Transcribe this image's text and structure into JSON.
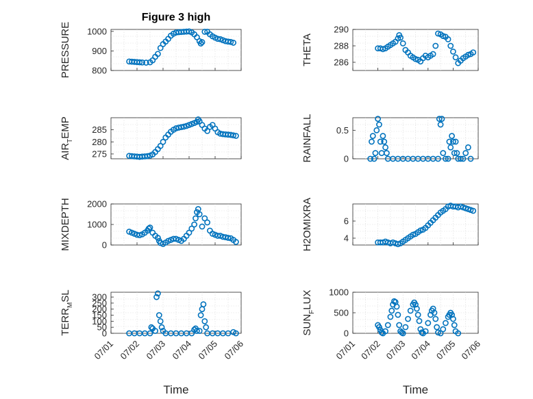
{
  "title": "Figure 3 high",
  "colors": {
    "marker": "#0072bd",
    "axis": "#262626",
    "grid": "#d9d9d9"
  },
  "chart_data": [
    {
      "type": "scatter",
      "id": "pressure",
      "ylabel": "PRESSURE",
      "ylim": [
        800,
        1010
      ],
      "yticks": [
        800,
        900,
        1000
      ],
      "grid": true,
      "points": [
        [
          1.7,
          846
        ],
        [
          1.8,
          845
        ],
        [
          1.9,
          844
        ],
        [
          2.0,
          843
        ],
        [
          2.1,
          842
        ],
        [
          2.2,
          841
        ],
        [
          2.35,
          840
        ],
        [
          2.5,
          842
        ],
        [
          2.6,
          852
        ],
        [
          2.7,
          870
        ],
        [
          2.8,
          885
        ],
        [
          2.9,
          915
        ],
        [
          3.0,
          935
        ],
        [
          3.1,
          948
        ],
        [
          3.2,
          962
        ],
        [
          3.3,
          978
        ],
        [
          3.4,
          988
        ],
        [
          3.5,
          994
        ],
        [
          3.6,
          996
        ],
        [
          3.7,
          997
        ],
        [
          3.8,
          998
        ],
        [
          3.9,
          999
        ],
        [
          4.0,
          1000
        ],
        [
          4.1,
          995
        ],
        [
          4.2,
          985
        ],
        [
          4.3,
          970
        ],
        [
          4.4,
          950
        ],
        [
          4.45,
          938
        ],
        [
          4.5,
          945
        ],
        [
          4.6,
          998
        ],
        [
          4.7,
          998
        ],
        [
          4.8,
          985
        ],
        [
          4.9,
          975
        ],
        [
          5.0,
          968
        ],
        [
          5.1,
          962
        ],
        [
          5.2,
          960
        ],
        [
          5.3,
          955
        ],
        [
          5.4,
          950
        ],
        [
          5.5,
          948
        ],
        [
          5.6,
          946
        ],
        [
          5.7,
          942
        ]
      ]
    },
    {
      "type": "scatter",
      "id": "theta",
      "ylabel": "THETA",
      "ylim": [
        285,
        290
      ],
      "yticks": [
        286,
        288,
        290
      ],
      "grid": true,
      "points": [
        [
          2.0,
          287.7
        ],
        [
          2.1,
          287.7
        ],
        [
          2.2,
          287.6
        ],
        [
          2.3,
          287.7
        ],
        [
          2.4,
          287.9
        ],
        [
          2.5,
          288.1
        ],
        [
          2.6,
          288.3
        ],
        [
          2.7,
          288.5
        ],
        [
          2.8,
          288.9
        ],
        [
          2.85,
          289.3
        ],
        [
          2.9,
          289.0
        ],
        [
          3.0,
          288.3
        ],
        [
          3.1,
          287.5
        ],
        [
          3.2,
          287.2
        ],
        [
          3.3,
          286.8
        ],
        [
          3.4,
          286.6
        ],
        [
          3.5,
          286.4
        ],
        [
          3.6,
          286.3
        ],
        [
          3.7,
          286.1
        ],
        [
          3.8,
          286.5
        ],
        [
          3.9,
          286.8
        ],
        [
          4.0,
          286.6
        ],
        [
          4.1,
          286.8
        ],
        [
          4.2,
          287.0
        ],
        [
          4.3,
          288.0
        ],
        [
          4.4,
          289.5
        ],
        [
          4.5,
          289.4
        ],
        [
          4.6,
          289.2
        ],
        [
          4.7,
          289.1
        ],
        [
          4.8,
          288.8
        ],
        [
          4.9,
          288.0
        ],
        [
          5.0,
          287.3
        ],
        [
          5.1,
          286.6
        ],
        [
          5.2,
          285.9
        ],
        [
          5.3,
          286.2
        ],
        [
          5.4,
          286.5
        ],
        [
          5.5,
          286.7
        ],
        [
          5.6,
          286.9
        ],
        [
          5.7,
          287.0
        ],
        [
          5.8,
          287.2
        ]
      ]
    },
    {
      "type": "scatter",
      "id": "air_temp",
      "ylabel": "AIR",
      "ylabel_sub": "T",
      "ylabel_rest": "EMP",
      "ylim": [
        273,
        290
      ],
      "yticks": [
        275,
        280,
        285
      ],
      "grid": true,
      "points": [
        [
          1.7,
          274.2
        ],
        [
          1.8,
          274.1
        ],
        [
          1.9,
          274.0
        ],
        [
          2.0,
          273.9
        ],
        [
          2.1,
          273.8
        ],
        [
          2.2,
          273.9
        ],
        [
          2.3,
          274.0
        ],
        [
          2.4,
          274.1
        ],
        [
          2.5,
          274.3
        ],
        [
          2.6,
          274.8
        ],
        [
          2.7,
          275.8
        ],
        [
          2.8,
          277.0
        ],
        [
          2.9,
          278.3
        ],
        [
          3.0,
          280.0
        ],
        [
          3.1,
          281.8
        ],
        [
          3.2,
          283.0
        ],
        [
          3.3,
          284.2
        ],
        [
          3.4,
          285.0
        ],
        [
          3.5,
          285.6
        ],
        [
          3.6,
          285.9
        ],
        [
          3.7,
          286.1
        ],
        [
          3.8,
          286.3
        ],
        [
          3.9,
          286.6
        ],
        [
          4.0,
          287.0
        ],
        [
          4.1,
          287.4
        ],
        [
          4.2,
          287.8
        ],
        [
          4.3,
          288.3
        ],
        [
          4.35,
          289.3
        ],
        [
          4.4,
          288.5
        ],
        [
          4.5,
          287.0
        ],
        [
          4.6,
          285.5
        ],
        [
          4.7,
          284.5
        ],
        [
          4.8,
          286.2
        ],
        [
          4.9,
          287.0
        ],
        [
          5.0,
          285.5
        ],
        [
          5.1,
          284.0
        ],
        [
          5.2,
          283.4
        ],
        [
          5.3,
          283.2
        ],
        [
          5.4,
          283.1
        ],
        [
          5.5,
          283.0
        ],
        [
          5.6,
          282.9
        ],
        [
          5.7,
          282.7
        ],
        [
          5.8,
          282.5
        ]
      ]
    },
    {
      "type": "scatter",
      "id": "rainfall",
      "ylabel": "RAINFALL",
      "ylim": [
        0,
        0.72
      ],
      "yticks": [
        0,
        0.5
      ],
      "grid": true,
      "points": [
        [
          1.7,
          0
        ],
        [
          1.75,
          0.3
        ],
        [
          1.8,
          0.4
        ],
        [
          1.85,
          0
        ],
        [
          1.9,
          0.1
        ],
        [
          1.95,
          0.5
        ],
        [
          2.0,
          0.7
        ],
        [
          2.05,
          0.6
        ],
        [
          2.1,
          0.3
        ],
        [
          2.15,
          0.1
        ],
        [
          2.2,
          0.4
        ],
        [
          2.25,
          0.3
        ],
        [
          2.3,
          0.2
        ],
        [
          2.35,
          0.1
        ],
        [
          2.4,
          0
        ],
        [
          2.6,
          0
        ],
        [
          2.8,
          0
        ],
        [
          3.0,
          0
        ],
        [
          3.2,
          0
        ],
        [
          3.4,
          0
        ],
        [
          3.6,
          0
        ],
        [
          3.8,
          0
        ],
        [
          4.0,
          0
        ],
        [
          4.2,
          0
        ],
        [
          4.4,
          0
        ],
        [
          4.45,
          0.7
        ],
        [
          4.5,
          0.6
        ],
        [
          4.55,
          0.7
        ],
        [
          4.6,
          0.1
        ],
        [
          4.7,
          0
        ],
        [
          4.8,
          0
        ],
        [
          4.85,
          0.3
        ],
        [
          4.9,
          0.2
        ],
        [
          4.95,
          0.4
        ],
        [
          5.0,
          0.3
        ],
        [
          5.05,
          0.1
        ],
        [
          5.1,
          0.3
        ],
        [
          5.15,
          0.1
        ],
        [
          5.2,
          0
        ],
        [
          5.3,
          0
        ],
        [
          5.4,
          0
        ],
        [
          5.5,
          0.1
        ],
        [
          5.6,
          0.2
        ],
        [
          5.7,
          0
        ]
      ]
    },
    {
      "type": "scatter",
      "id": "mixdepth",
      "ylabel": "MIXDEPTH",
      "ylim": [
        0,
        2000
      ],
      "yticks": [
        0,
        1000,
        2000
      ],
      "grid": true,
      "points": [
        [
          1.7,
          650
        ],
        [
          1.8,
          600
        ],
        [
          1.9,
          550
        ],
        [
          2.0,
          500
        ],
        [
          2.1,
          480
        ],
        [
          2.2,
          520
        ],
        [
          2.3,
          600
        ],
        [
          2.4,
          700
        ],
        [
          2.45,
          800
        ],
        [
          2.5,
          850
        ],
        [
          2.6,
          600
        ],
        [
          2.7,
          450
        ],
        [
          2.8,
          350
        ],
        [
          2.85,
          200
        ],
        [
          2.9,
          100
        ],
        [
          3.0,
          50
        ],
        [
          3.1,
          120
        ],
        [
          3.2,
          200
        ],
        [
          3.3,
          250
        ],
        [
          3.4,
          300
        ],
        [
          3.5,
          300
        ],
        [
          3.6,
          250
        ],
        [
          3.7,
          200
        ],
        [
          3.8,
          300
        ],
        [
          3.9,
          450
        ],
        [
          4.0,
          600
        ],
        [
          4.1,
          800
        ],
        [
          4.2,
          1000
        ],
        [
          4.25,
          1300
        ],
        [
          4.3,
          1600
        ],
        [
          4.35,
          1750
        ],
        [
          4.4,
          1500
        ],
        [
          4.5,
          900
        ],
        [
          4.6,
          1300
        ],
        [
          4.7,
          1100
        ],
        [
          4.8,
          700
        ],
        [
          4.9,
          550
        ],
        [
          5.0,
          500
        ],
        [
          5.1,
          450
        ],
        [
          5.2,
          450
        ],
        [
          5.3,
          400
        ],
        [
          5.4,
          380
        ],
        [
          5.5,
          350
        ],
        [
          5.6,
          330
        ],
        [
          5.7,
          250
        ],
        [
          5.8,
          150
        ]
      ]
    },
    {
      "type": "scatter",
      "id": "h2omixra",
      "ylabel": "H2OMIXRA",
      "ylim": [
        3.2,
        8.0
      ],
      "yticks": [
        4,
        6
      ],
      "grid": true,
      "points": [
        [
          2.0,
          3.5
        ],
        [
          2.1,
          3.5
        ],
        [
          2.2,
          3.5
        ],
        [
          2.3,
          3.6
        ],
        [
          2.4,
          3.5
        ],
        [
          2.5,
          3.4
        ],
        [
          2.6,
          3.5
        ],
        [
          2.7,
          3.4
        ],
        [
          2.8,
          3.3
        ],
        [
          2.9,
          3.4
        ],
        [
          3.0,
          3.6
        ],
        [
          3.1,
          3.8
        ],
        [
          3.2,
          4.0
        ],
        [
          3.3,
          4.2
        ],
        [
          3.4,
          4.4
        ],
        [
          3.5,
          4.5
        ],
        [
          3.6,
          4.7
        ],
        [
          3.7,
          4.9
        ],
        [
          3.8,
          5.0
        ],
        [
          3.9,
          5.2
        ],
        [
          4.0,
          5.5
        ],
        [
          4.1,
          5.8
        ],
        [
          4.2,
          6.1
        ],
        [
          4.3,
          6.4
        ],
        [
          4.4,
          6.7
        ],
        [
          4.5,
          7.0
        ],
        [
          4.6,
          7.2
        ],
        [
          4.7,
          7.4
        ],
        [
          4.8,
          7.7
        ],
        [
          4.9,
          7.8
        ],
        [
          5.0,
          7.7
        ],
        [
          5.1,
          7.7
        ],
        [
          5.2,
          7.6
        ],
        [
          5.3,
          7.7
        ],
        [
          5.4,
          7.6
        ],
        [
          5.5,
          7.5
        ],
        [
          5.6,
          7.4
        ],
        [
          5.7,
          7.3
        ],
        [
          5.8,
          7.2
        ]
      ]
    },
    {
      "type": "scatter",
      "id": "terr_msl",
      "ylabel": "TERR",
      "ylabel_sub": "M",
      "ylabel_rest": "SL",
      "ylim": [
        0,
        340
      ],
      "yticks": [
        0,
        50,
        100,
        150,
        200,
        250,
        300
      ],
      "grid": true,
      "points": [
        [
          1.7,
          0
        ],
        [
          1.9,
          0
        ],
        [
          2.1,
          0
        ],
        [
          2.3,
          0
        ],
        [
          2.5,
          0
        ],
        [
          2.55,
          50
        ],
        [
          2.6,
          40
        ],
        [
          2.7,
          20
        ],
        [
          2.75,
          300
        ],
        [
          2.8,
          330
        ],
        [
          2.85,
          150
        ],
        [
          2.9,
          100
        ],
        [
          2.95,
          50
        ],
        [
          3.0,
          20
        ],
        [
          3.1,
          0
        ],
        [
          3.3,
          0
        ],
        [
          3.5,
          0
        ],
        [
          3.7,
          0
        ],
        [
          3.9,
          0
        ],
        [
          4.1,
          0
        ],
        [
          4.2,
          30
        ],
        [
          4.25,
          40
        ],
        [
          4.3,
          20
        ],
        [
          4.4,
          20
        ],
        [
          4.45,
          150
        ],
        [
          4.5,
          200
        ],
        [
          4.55,
          240
        ],
        [
          4.6,
          100
        ],
        [
          4.65,
          50
        ],
        [
          4.7,
          0
        ],
        [
          4.9,
          0
        ],
        [
          5.1,
          0
        ],
        [
          5.3,
          0
        ],
        [
          5.5,
          0
        ],
        [
          5.7,
          10
        ],
        [
          5.8,
          0
        ]
      ]
    },
    {
      "type": "scatter",
      "id": "sun_flux",
      "ylabel": "SUN",
      "ylabel_sub": "F",
      "ylabel_rest": "LUX",
      "ylim": [
        0,
        1000
      ],
      "yticks": [
        0,
        500,
        1000
      ],
      "grid": true,
      "points": [
        [
          2.0,
          200
        ],
        [
          2.05,
          150
        ],
        [
          2.1,
          80
        ],
        [
          2.15,
          20
        ],
        [
          2.2,
          0
        ],
        [
          2.3,
          50
        ],
        [
          2.4,
          200
        ],
        [
          2.5,
          400
        ],
        [
          2.55,
          550
        ],
        [
          2.6,
          700
        ],
        [
          2.65,
          780
        ],
        [
          2.7,
          760
        ],
        [
          2.75,
          650
        ],
        [
          2.8,
          450
        ],
        [
          2.85,
          200
        ],
        [
          2.9,
          50
        ],
        [
          2.95,
          20
        ],
        [
          3.0,
          0
        ],
        [
          3.1,
          150
        ],
        [
          3.2,
          350
        ],
        [
          3.3,
          550
        ],
        [
          3.4,
          700
        ],
        [
          3.45,
          750
        ],
        [
          3.5,
          700
        ],
        [
          3.55,
          600
        ],
        [
          3.6,
          450
        ],
        [
          3.65,
          300
        ],
        [
          3.7,
          100
        ],
        [
          3.75,
          20
        ],
        [
          3.8,
          0
        ],
        [
          3.9,
          50
        ],
        [
          4.0,
          250
        ],
        [
          4.1,
          450
        ],
        [
          4.15,
          550
        ],
        [
          4.2,
          600
        ],
        [
          4.25,
          500
        ],
        [
          4.3,
          350
        ],
        [
          4.35,
          150
        ],
        [
          4.4,
          20
        ],
        [
          4.5,
          0
        ],
        [
          4.6,
          100
        ],
        [
          4.7,
          250
        ],
        [
          4.8,
          400
        ],
        [
          4.85,
          450
        ],
        [
          4.9,
          500
        ],
        [
          4.95,
          450
        ],
        [
          5.0,
          350
        ],
        [
          5.05,
          200
        ],
        [
          5.1,
          50
        ],
        [
          5.2,
          0
        ]
      ]
    }
  ],
  "x_axis": {
    "tick_values": [
      1,
      2,
      3,
      4,
      5,
      6
    ],
    "tick_labels": [
      "07/01",
      "07/02",
      "07/03",
      "07/04",
      "07/05",
      "07/06"
    ],
    "xlabel": "Time"
  }
}
